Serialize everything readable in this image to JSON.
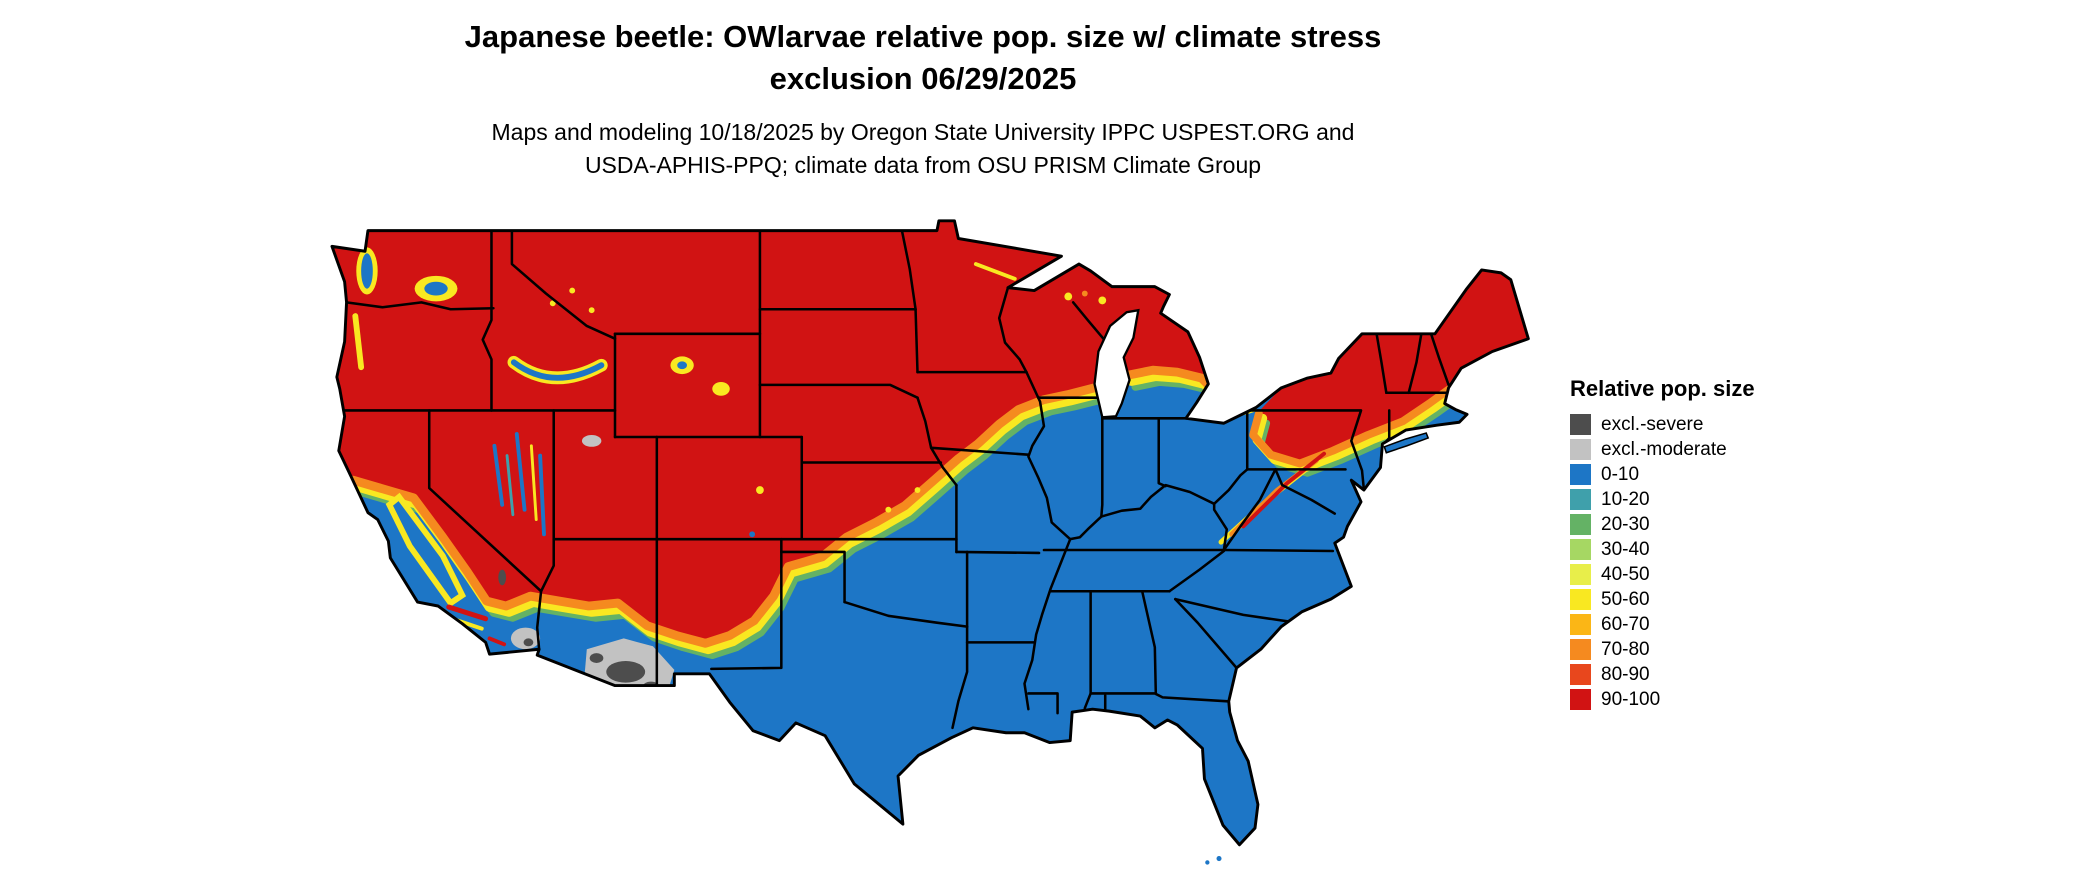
{
  "header": {
    "title_line1": "Japanese beetle: OWlarvae relative pop. size w/ climate stress",
    "title_line2": "exclusion 06/29/2025",
    "subtitle_line1": "Maps and modeling 10/18/2025 by Oregon State University IPPC USPEST.ORG and",
    "subtitle_line2": "USDA-APHIS-PPQ; climate data from OSU PRISM Climate Group"
  },
  "legend": {
    "title": "Relative pop. size",
    "items": [
      {
        "label": "excl.-severe",
        "color": "#4d4d4d"
      },
      {
        "label": "excl.-moderate",
        "color": "#c2c2c2"
      },
      {
        "label": "0-10",
        "color": "#1d76c6"
      },
      {
        "label": "10-20",
        "color": "#3fa0ab"
      },
      {
        "label": "20-30",
        "color": "#64b265"
      },
      {
        "label": "30-40",
        "color": "#a6d763"
      },
      {
        "label": "40-50",
        "color": "#e8ee4a"
      },
      {
        "label": "50-60",
        "color": "#f9e821"
      },
      {
        "label": "60-70",
        "color": "#fbb616"
      },
      {
        "label": "70-80",
        "color": "#f58a1f"
      },
      {
        "label": "80-90",
        "color": "#e8471d"
      },
      {
        "label": "90-100",
        "color": "#d11313"
      }
    ]
  },
  "map": {
    "type": "choropleth-raster",
    "area": "contiguous United States"
  }
}
